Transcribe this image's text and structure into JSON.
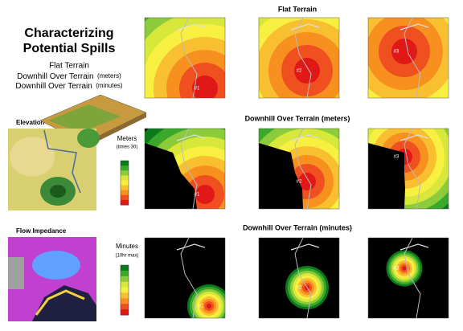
{
  "title": [
    "Characterizing",
    "Potential Spills"
  ],
  "menu": [
    {
      "text": "Flat Terrain"
    },
    {
      "text": "Downhill Over Terrain",
      "unit": "(meters)"
    },
    {
      "text": "Downhill Over Terrain",
      "unit": "(minutes)"
    }
  ],
  "left_panels": [
    {
      "label": "Elevation"
    },
    {
      "label": "Flow Impedance"
    }
  ],
  "legends": [
    {
      "title": "Meters",
      "subtitle": "(times 30)"
    },
    {
      "title": "Minutes",
      "subtitle": "(10hr max)"
    }
  ],
  "rows": [
    {
      "title": "Flat Terrain",
      "sites": [
        "#1",
        "#2",
        "#3"
      ]
    },
    {
      "title": "Downhill Over Terrain (meters)",
      "sites": [
        "#1",
        "#2",
        "#3"
      ]
    },
    {
      "title": "Downhill Over Terrain (minutes)",
      "sites": [
        "#1",
        "#2",
        "#3"
      ]
    }
  ]
}
